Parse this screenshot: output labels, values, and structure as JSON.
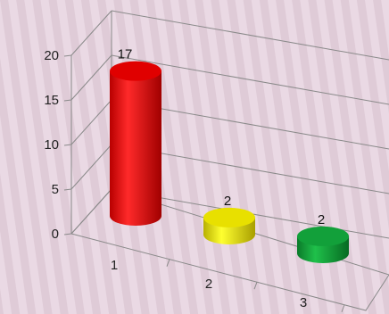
{
  "chart_data": {
    "type": "bar",
    "style": "3d-cylinder",
    "categories": [
      "1",
      "2",
      "3"
    ],
    "values": [
      17,
      2,
      2
    ],
    "data_labels": [
      "17",
      "2",
      "2"
    ],
    "y_ticks": [
      "0",
      "5",
      "10",
      "15",
      "20"
    ],
    "ylim": [
      0,
      20
    ],
    "grid": true,
    "colors": [
      "#e00000",
      "#e8e000",
      "#12a03a"
    ],
    "background": "#ead9e4"
  }
}
